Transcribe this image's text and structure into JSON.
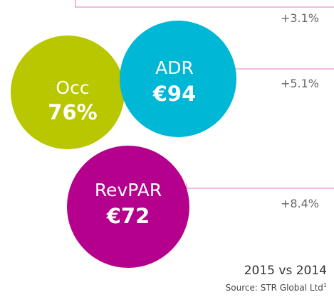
{
  "metrics": [
    {
      "label": "Occ",
      "value": "76%",
      "change": "+3.1%"
    },
    {
      "label": "ADR",
      "value": "€94",
      "change": "+5.1%"
    },
    {
      "label": "RevPAR",
      "value": "€72",
      "change": "+8.4%"
    }
  ],
  "comparison": "2015 vs 2014",
  "source": "Source: STR Global Ltd",
  "footnote": "1"
}
